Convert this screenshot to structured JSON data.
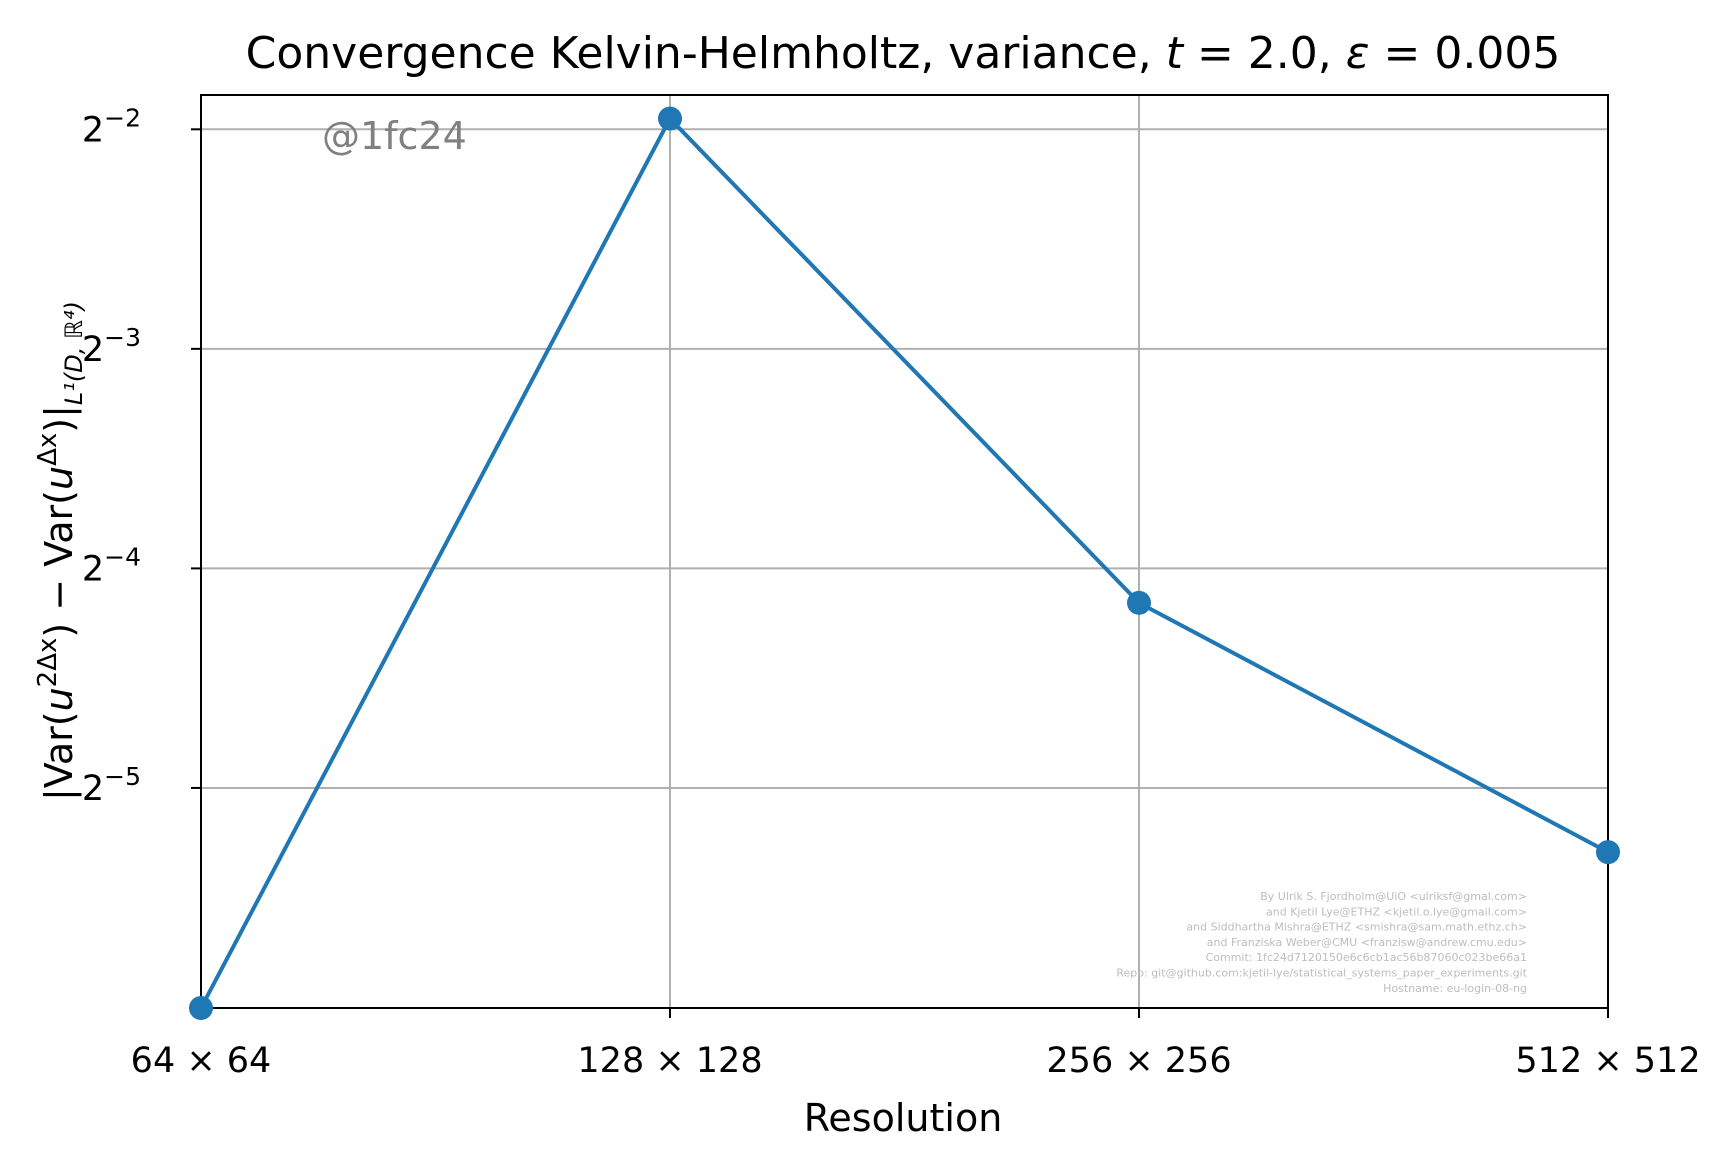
{
  "chart_data": {
    "type": "line",
    "title_main": "Convergence Kelvin-Helmholtz, variance, ",
    "title_t": "t",
    "title_t_value": " = 2.0, ",
    "title_eps": "ε",
    "title_eps_value": " = 0.005",
    "xlabel": "Resolution",
    "ylabel": {
      "p1": "|Var(",
      "u1": "u",
      "sup1": "2Δx",
      "p2": ") − Var(",
      "u2": "u",
      "sup2": "Δx",
      "p3": ")|",
      "sub": "L¹(D, ℝ⁴)"
    },
    "categories": [
      "64 × 64",
      "128 × 128",
      "256 × 256",
      "512 × 512"
    ],
    "y_scale": "log2",
    "y_ticks": [
      {
        "base": "2",
        "exp": "−2",
        "value": 0.25
      },
      {
        "base": "2",
        "exp": "−3",
        "value": 0.125
      },
      {
        "base": "2",
        "exp": "−4",
        "value": 0.0625
      },
      {
        "base": "2",
        "exp": "−5",
        "value": 0.03125
      }
    ],
    "ylim": [
      0.0156,
      0.2786
    ],
    "grid": true,
    "series": [
      {
        "color": "#1f77b4",
        "values": [
          0.0156,
          0.2586,
          0.05606,
          0.02552
        ]
      }
    ]
  },
  "watermark": "@1fc24",
  "credits": [
    "By Ulrik S. Fjordholm@UiO <ulriksf@gmal.com>",
    "and Kjetil Lye@ETHZ <kjetil.o.lye@gmail.com>",
    "and Siddhartha Mishra@ETHZ <smishra@sam.math.ethz.ch>",
    "and Franziska Weber@CMU <franzisw@andrew.cmu.edu>",
    "Commit: 1fc24d7120150e6c6cb1ac56b87060c023be66a1",
    "Repo: git@github.com:kjetil-lye/statistical_systems_paper_experiments.git",
    "Hostname: eu-login-08-ng"
  ]
}
